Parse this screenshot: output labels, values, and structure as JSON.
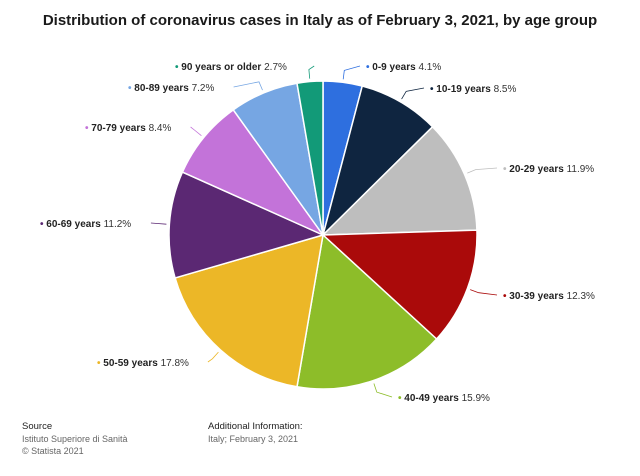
{
  "title": "Distribution of coronavirus cases in Italy as of February 3, 2021, by age group",
  "chart_data": {
    "type": "pie",
    "slices": [
      {
        "label": "0-9 years",
        "value": 4.1,
        "value_label": "4.1%",
        "color": "#2e6fdf"
      },
      {
        "label": "10-19 years",
        "value": 8.5,
        "value_label": "8.5%",
        "color": "#0f2540"
      },
      {
        "label": "20-29 years",
        "value": 11.9,
        "value_label": "11.9%",
        "color": "#bebebe"
      },
      {
        "label": "30-39 years",
        "value": 12.3,
        "value_label": "12.3%",
        "color": "#aa0a0a"
      },
      {
        "label": "40-49 years",
        "value": 15.9,
        "value_label": "15.9%",
        "color": "#8dbd29"
      },
      {
        "label": "50-59 years",
        "value": 17.8,
        "value_label": "17.8%",
        "color": "#ecb727"
      },
      {
        "label": "60-69 years",
        "value": 11.2,
        "value_label": "11.2%",
        "color": "#5b2873"
      },
      {
        "label": "70-79 years",
        "value": 8.4,
        "value_label": "8.4%",
        "color": "#c373d9"
      },
      {
        "label": "80-89 years",
        "value": 7.2,
        "value_label": "7.2%",
        "color": "#76a6e3"
      },
      {
        "label": "90 years or older",
        "value": 2.7,
        "value_label": "2.7%",
        "color": "#129a78"
      }
    ]
  },
  "footer": {
    "source_header": "Source",
    "source_line1": "Istituto Superiore di Sanità",
    "source_line2": "© Statista 2021",
    "info_header": "Additional Information:",
    "info_line1": "Italy; February 3, 2021"
  }
}
